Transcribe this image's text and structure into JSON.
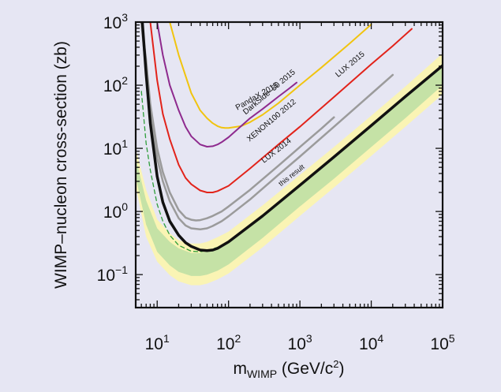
{
  "chart_data": {
    "type": "line",
    "xscale": "log",
    "yscale": "log",
    "xlim": [
      5,
      100000
    ],
    "ylim": [
      0.03,
      1000
    ],
    "xlabel_main": "m",
    "xlabel_sub": "WIMP",
    "xlabel_unit": "(GeV/c",
    "xlabel_unit_sup": "2",
    "xlabel_close": ")",
    "ylabel": "WIMP–nucleon cross-section (zb)",
    "xticks": [
      {
        "value": 10,
        "base": "10",
        "exp": "1"
      },
      {
        "value": 100,
        "base": "10",
        "exp": "2"
      },
      {
        "value": 1000,
        "base": "10",
        "exp": "3"
      },
      {
        "value": 10000,
        "base": "10",
        "exp": "4"
      },
      {
        "value": 100000,
        "base": "10",
        "exp": "5"
      }
    ],
    "yticks": [
      {
        "value": 0.1,
        "base": "10",
        "exp": "−1"
      },
      {
        "value": 1,
        "base": "10",
        "exp": "0"
      },
      {
        "value": 10,
        "base": "10",
        "exp": "1"
      },
      {
        "value": 100,
        "base": "10",
        "exp": "2"
      },
      {
        "value": 1000,
        "base": "10",
        "exp": "3"
      }
    ],
    "grid": false,
    "bands": [
      {
        "kind": "sensitivity 2-sigma",
        "color": "#faf4b4",
        "upper": {
          "x": [
            5,
            7,
            10,
            15,
            20,
            30,
            40,
            50,
            70,
            100,
            300,
            1000,
            3000,
            10000,
            30000,
            100000
          ],
          "y": [
            10,
            2.2,
            0.75,
            0.45,
            0.35,
            0.31,
            0.31,
            0.33,
            0.39,
            0.48,
            1.25,
            3.8,
            10.5,
            33,
            95,
            320
          ]
        },
        "lower": {
          "x": [
            5,
            7,
            10,
            15,
            20,
            30,
            40,
            50,
            70,
            100,
            300,
            1000,
            3000,
            10000,
            30000,
            100000
          ],
          "y": [
            2.5,
            0.4,
            0.16,
            0.098,
            0.078,
            0.068,
            0.068,
            0.072,
            0.084,
            0.104,
            0.27,
            0.85,
            2.4,
            7.6,
            22,
            72
          ]
        }
      },
      {
        "kind": "sensitivity 1-sigma",
        "color": "#c5e2a6",
        "upper": {
          "x": [
            5,
            7,
            10,
            15,
            20,
            30,
            40,
            50,
            70,
            100,
            300,
            1000,
            3000,
            10000,
            30000,
            100000
          ],
          "y": [
            7,
            1.5,
            0.54,
            0.33,
            0.26,
            0.22,
            0.22,
            0.235,
            0.27,
            0.34,
            0.88,
            2.7,
            7.5,
            24,
            68,
            220
          ]
        },
        "lower": {
          "x": [
            5,
            7,
            10,
            15,
            20,
            30,
            40,
            50,
            70,
            100,
            300,
            1000,
            3000,
            10000,
            30000,
            100000
          ],
          "y": [
            3.5,
            0.62,
            0.23,
            0.14,
            0.11,
            0.095,
            0.095,
            0.1,
            0.115,
            0.145,
            0.38,
            1.2,
            3.3,
            10.5,
            30,
            100
          ]
        }
      }
    ],
    "series": [
      {
        "name": "PandaX 2015",
        "color": "#f1c40f",
        "width": 2,
        "x": [
          15,
          20,
          30,
          40,
          50,
          60,
          70,
          80,
          90,
          100,
          150,
          200,
          300,
          500,
          1000,
          2000,
          5000,
          10000
        ],
        "y": [
          1000,
          300,
          75,
          40,
          30,
          25,
          22.5,
          21.3,
          21,
          21,
          22.5,
          26,
          34,
          52,
          100,
          190,
          460,
          920
        ]
      },
      {
        "name": "DarkSide–50 2015",
        "color": "#8e2a8e",
        "width": 2,
        "x": [
          10,
          12,
          15,
          20,
          25,
          30,
          40,
          50,
          60,
          70,
          80,
          100,
          150,
          200,
          300,
          500,
          700,
          900
        ],
        "y": [
          1000,
          300,
          100,
          40,
          22,
          15.5,
          11.5,
          10.6,
          10.8,
          11.5,
          12.5,
          15,
          22.5,
          30,
          42,
          66,
          88,
          110
        ]
      },
      {
        "name": "XENON100 2012",
        "color": "#e2231a",
        "width": 2,
        "x": [
          8,
          10,
          12,
          15,
          20,
          25,
          30,
          40,
          50,
          60,
          70,
          100,
          200,
          500,
          1000,
          3000,
          10000,
          20000,
          37000
        ],
        "y": [
          1000,
          120,
          35,
          14,
          5.5,
          3.4,
          2.7,
          2.15,
          2.0,
          2.0,
          2.1,
          2.55,
          4.8,
          11.5,
          22,
          65,
          215,
          420,
          780
        ]
      },
      {
        "name": "LUX 2014",
        "color": "#9b9b9b",
        "width": 2.5,
        "x": [
          6,
          7,
          8,
          10,
          12,
          15,
          20,
          25,
          30,
          35,
          40,
          50,
          60,
          80,
          100,
          200,
          500,
          1000,
          2000,
          3000
        ],
        "y": [
          1000,
          250,
          50,
          10,
          4.2,
          2.0,
          1.05,
          0.8,
          0.74,
          0.72,
          0.73,
          0.78,
          0.85,
          1.0,
          1.2,
          2.2,
          5.3,
          10.5,
          20.5,
          31
        ]
      },
      {
        "name": "LUX 2015",
        "color": "#9b9b9b",
        "width": 2.5,
        "x": [
          6,
          7,
          8,
          10,
          12,
          15,
          20,
          25,
          30,
          40,
          50,
          60,
          80,
          100,
          200,
          500,
          1000,
          3000,
          10000,
          20000
        ],
        "y": [
          1000,
          160,
          35,
          7,
          3.0,
          1.45,
          0.78,
          0.6,
          0.54,
          0.52,
          0.54,
          0.59,
          0.7,
          0.84,
          1.55,
          3.8,
          7.4,
          22,
          73,
          146
        ]
      },
      {
        "name": "sensitivity median",
        "color": "#2e9e3a",
        "width": 1.3,
        "dash": "5,4",
        "x": [
          6,
          7,
          8,
          10,
          12,
          15,
          20,
          30,
          40,
          50,
          70,
          100,
          300,
          1000,
          3000,
          10000,
          30000,
          100000
        ],
        "y": [
          80,
          12,
          4.5,
          1.3,
          0.7,
          0.42,
          0.29,
          0.235,
          0.23,
          0.24,
          0.27,
          0.33,
          0.85,
          2.6,
          7.2,
          23,
          66,
          210
        ]
      },
      {
        "name": "this result",
        "color": "#111111",
        "width": 3.5,
        "x": [
          6.2,
          7,
          8,
          10,
          12,
          15,
          20,
          25,
          30,
          40,
          50,
          60,
          70,
          100,
          300,
          1000,
          3000,
          10000,
          30000,
          100000
        ],
        "y": [
          1000,
          150,
          25,
          3.6,
          1.4,
          0.7,
          0.42,
          0.32,
          0.28,
          0.245,
          0.24,
          0.245,
          0.26,
          0.33,
          0.85,
          2.6,
          7.3,
          23,
          66,
          205
        ]
      }
    ],
    "labels": [
      {
        "text": "PandaX 2015",
        "x": 260,
        "y": 62,
        "angle": -30,
        "fontSize": 10,
        "color": "#111111"
      },
      {
        "text": "DarkSide–50 2015",
        "x": 390,
        "y": 73,
        "angle": -40,
        "fontSize": 10,
        "color": "#111111"
      },
      {
        "text": "XENON100 2012",
        "x": 420,
        "y": 26,
        "angle": -40,
        "fontSize": 10,
        "color": "#111111"
      },
      {
        "text": "LUX 2014",
        "x": 490,
        "y": 8.6,
        "angle": -38,
        "fontSize": 10,
        "color": "#111111"
      },
      {
        "text": "LUX 2015",
        "x": 5300,
        "y": 200,
        "angle": -40,
        "fontSize": 10,
        "color": "#111111"
      },
      {
        "text": "this result",
        "x": 800,
        "y": 3.5,
        "angle": -38,
        "fontSize": 9,
        "color": "#111111"
      }
    ]
  }
}
